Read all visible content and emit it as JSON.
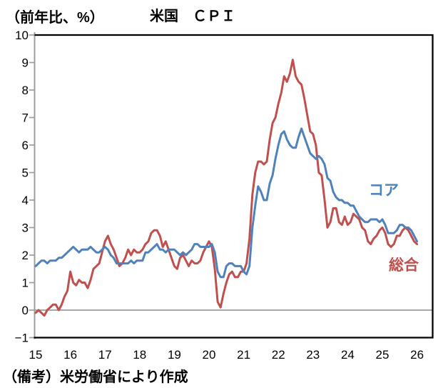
{
  "header": {
    "y_axis_unit": "（前年比、%）",
    "title": "米国　ＣＰＩ"
  },
  "annotations": {
    "core_label": "コア",
    "headline_label": "総合"
  },
  "footnote": "（備考）米労働省により作成",
  "colors": {
    "core": "#4F81BD",
    "headline": "#C0504D",
    "axis_gray": "#9E9E9E",
    "zero_line": "#8C8C8C",
    "border": "#000000"
  },
  "chart_data": {
    "type": "line",
    "title": "米国　ＣＰＩ",
    "ylabel": "（前年比、%）",
    "ylim": [
      -1,
      10
    ],
    "yticks": [
      10,
      9,
      8,
      7,
      6,
      5,
      4,
      3,
      2,
      1,
      0,
      -1
    ],
    "xtick_labels": [
      "15",
      "16",
      "17",
      "18",
      "19",
      "20",
      "21",
      "22",
      "23",
      "24",
      "25",
      "26"
    ],
    "x_axis_note": "years 2015-2026, monthly data starting Jan 2015",
    "grid": "zero-line-only",
    "legend_position": "inline-annotations",
    "series": [
      {
        "name": "総合",
        "color": "#C0504D",
        "values": [
          -0.1,
          0.0,
          -0.1,
          -0.2,
          0.0,
          0.1,
          0.2,
          0.2,
          0.0,
          0.2,
          0.5,
          0.7,
          1.4,
          1.0,
          0.9,
          1.1,
          1.0,
          1.0,
          0.8,
          1.1,
          1.5,
          1.6,
          1.7,
          2.1,
          2.5,
          2.7,
          2.4,
          2.2,
          1.9,
          1.6,
          1.7,
          1.9,
          2.2,
          2.0,
          2.2,
          2.1,
          2.1,
          2.2,
          2.4,
          2.5,
          2.8,
          2.9,
          2.9,
          2.7,
          2.3,
          2.5,
          2.2,
          1.9,
          1.6,
          1.5,
          1.9,
          2.0,
          1.8,
          1.6,
          1.8,
          1.7,
          1.7,
          1.8,
          2.1,
          2.3,
          2.5,
          2.3,
          1.5,
          0.3,
          0.1,
          0.6,
          1.0,
          1.3,
          1.4,
          1.2,
          1.2,
          1.4,
          1.4,
          1.7,
          2.6,
          4.2,
          5.0,
          5.4,
          5.4,
          5.3,
          5.4,
          6.2,
          6.8,
          7.0,
          7.5,
          7.9,
          8.5,
          8.3,
          8.6,
          9.1,
          8.5,
          8.3,
          8.2,
          7.7,
          7.1,
          6.5,
          6.4,
          6.0,
          5.0,
          4.9,
          4.0,
          3.0,
          3.2,
          3.7,
          3.7,
          3.2,
          3.1,
          3.4,
          3.1,
          3.2,
          3.5,
          3.4,
          3.3,
          3.0,
          2.9,
          2.5,
          2.4,
          2.6,
          2.7,
          2.9,
          3.0,
          2.8,
          2.4,
          2.3,
          2.4,
          2.7,
          2.7,
          2.9,
          3.0,
          2.9,
          2.7,
          2.5,
          2.4
        ]
      },
      {
        "name": "コア",
        "color": "#4F81BD",
        "values": [
          1.6,
          1.7,
          1.8,
          1.8,
          1.7,
          1.8,
          1.8,
          1.8,
          1.9,
          1.9,
          2.0,
          2.1,
          2.2,
          2.3,
          2.2,
          2.1,
          2.2,
          2.2,
          2.2,
          2.3,
          2.2,
          2.1,
          2.1,
          2.2,
          2.3,
          2.2,
          2.0,
          1.9,
          1.7,
          1.7,
          1.7,
          1.7,
          1.7,
          1.8,
          1.7,
          1.8,
          1.8,
          1.8,
          2.1,
          2.1,
          2.2,
          2.3,
          2.4,
          2.2,
          2.2,
          2.1,
          2.2,
          2.2,
          2.2,
          2.1,
          2.0,
          2.1,
          2.0,
          2.1,
          2.2,
          2.4,
          2.4,
          2.3,
          2.3,
          2.3,
          2.3,
          2.4,
          2.1,
          1.4,
          1.2,
          1.2,
          1.6,
          1.7,
          1.7,
          1.6,
          1.6,
          1.6,
          1.4,
          1.3,
          1.6,
          3.0,
          3.8,
          4.5,
          4.3,
          4.0,
          4.0,
          4.6,
          4.9,
          5.5,
          6.0,
          6.4,
          6.5,
          6.2,
          6.0,
          5.9,
          5.9,
          6.3,
          6.6,
          6.3,
          6.0,
          5.7,
          5.6,
          5.5,
          5.6,
          5.5,
          5.3,
          4.8,
          4.7,
          4.3,
          4.1,
          4.0,
          4.0,
          3.9,
          3.9,
          3.8,
          3.8,
          3.6,
          3.4,
          3.3,
          3.2,
          3.2,
          3.3,
          3.3,
          3.3,
          3.2,
          3.3,
          3.1,
          2.8,
          2.8,
          2.8,
          2.9,
          3.1,
          3.1,
          3.0,
          3.0,
          2.9,
          2.7,
          2.5
        ]
      }
    ]
  }
}
